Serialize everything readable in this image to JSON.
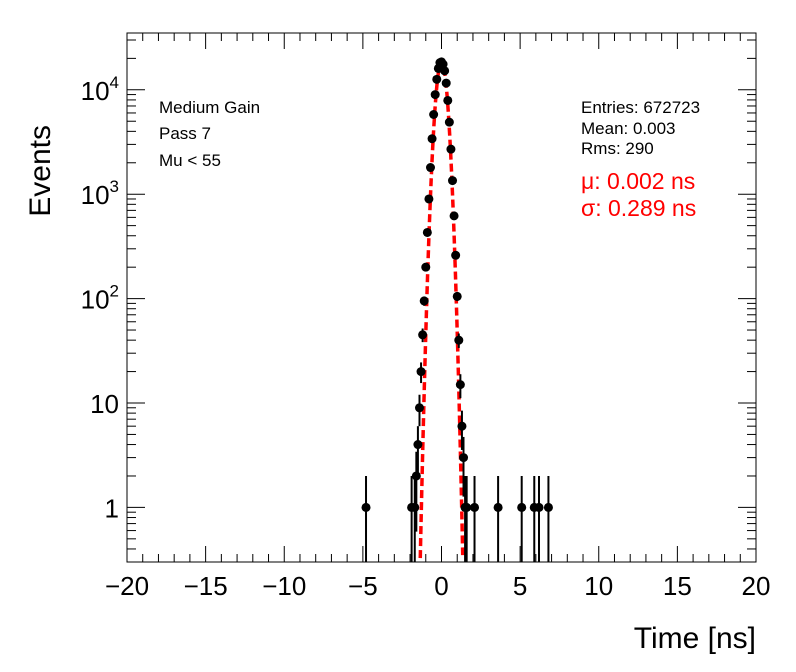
{
  "chart_data": {
    "type": "scatter",
    "xlabel": "Time [ns]",
    "ylabel": "Events",
    "xlim": [
      -20,
      20
    ],
    "ylim": [
      0.3,
      35000
    ],
    "y_scale": "log",
    "x_ticks": [
      -20,
      -15,
      -10,
      -5,
      0,
      5,
      10,
      15,
      20
    ],
    "y_ticks": [
      {
        "value": 1,
        "label": "1"
      },
      {
        "value": 10,
        "label": "10"
      },
      {
        "value": 100,
        "label": "10",
        "exp": "2"
      },
      {
        "value": 1000,
        "label": "10",
        "exp": "3"
      },
      {
        "value": 10000,
        "label": "10",
        "exp": "4"
      }
    ],
    "annotations_left": [
      "Medium Gain",
      "Pass 7",
      "Mu < 55"
    ],
    "stats": {
      "entries": "Entries: 672723",
      "mean": "Mean: 0.003",
      "rms": "Rms: 290"
    },
    "fit": {
      "mu_label": "μ: 0.002 ns",
      "sigma_label": "σ: 0.289 ns",
      "mu": 0.002,
      "sigma": 0.289,
      "amplitude": 18500,
      "color": "#ff0000"
    },
    "series": [
      {
        "points_x": [
          -1.9,
          -1.7,
          -1.6,
          -1.5,
          -1.4,
          -1.3,
          -1.2,
          -1.1,
          -1.0,
          -0.9,
          -0.8,
          -0.7,
          -0.6,
          -0.5,
          -0.4,
          -0.3,
          -0.2,
          -0.1,
          0.0,
          0.1,
          0.2,
          0.3,
          0.4,
          0.5,
          0.6,
          0.7,
          0.8,
          0.9,
          1.0,
          1.1,
          1.2,
          1.3,
          1.4,
          1.5
        ],
        "points_y": [
          1,
          1,
          2,
          4,
          9,
          20,
          45,
          95,
          200,
          430,
          900,
          1800,
          3400,
          5800,
          9000,
          12600,
          16000,
          18200,
          18500,
          17600,
          15200,
          11600,
          7900,
          4900,
          2700,
          1350,
          620,
          260,
          105,
          40,
          15,
          6,
          3,
          1
        ],
        "outliers_x": [
          -4.8,
          1.6,
          2.1,
          3.6,
          5.1,
          5.9,
          6.2,
          6.8
        ],
        "outliers_y": [
          1,
          1,
          1,
          1,
          1,
          1,
          1,
          1
        ]
      }
    ]
  },
  "colors": {
    "points": "#000000",
    "fit": "#ff0000"
  }
}
